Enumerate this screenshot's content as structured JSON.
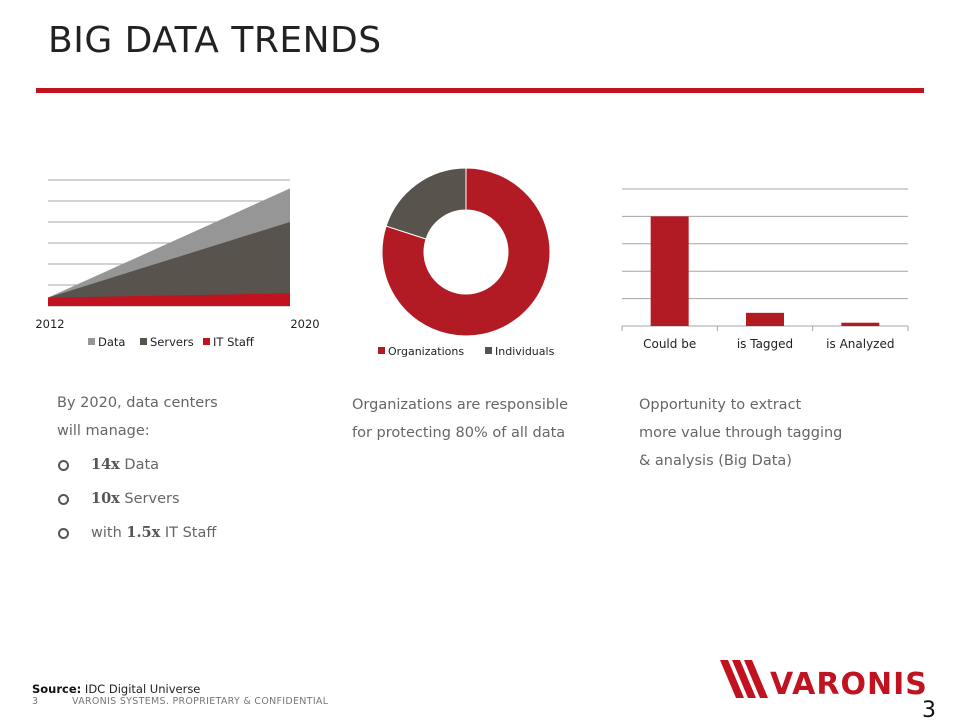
{
  "slide": {
    "title": "BIG DATA TRENDS",
    "page_number": "3",
    "footer_number": "3",
    "footer_text": "VARONIS SYSTEMS. PROPRIETARY & CONFIDENTIAL",
    "source_label": "Source:",
    "source_text": " IDC Digital Universe",
    "logo_text": "VARONIS"
  },
  "captions": {
    "left_line1": "By 2020, data centers",
    "left_line2": "will manage:",
    "bullets": [
      {
        "bold": "14x",
        "text": " Data"
      },
      {
        "pre": "",
        "bold": "10x",
        "text": " Servers"
      },
      {
        "pre": "with ",
        "bold": "1.5x",
        "text": " IT Staff"
      }
    ],
    "middle_line1": "Organizations are responsible",
    "middle_line2": "for protecting 80% of all data",
    "right_line1": "Opportunity to extract",
    "right_line2": "more value through tagging",
    "right_line3": "& analysis (Big Data)"
  },
  "colors": {
    "accent": "#c1121f",
    "bar_red": "#b31b24",
    "data_gray": "#969696",
    "servers_gray": "#58534d",
    "grid": "#a6a6a6"
  },
  "chart_data": [
    {
      "type": "area",
      "x": [
        "2012",
        "2020"
      ],
      "series": [
        {
          "name": "Data",
          "values": [
            1,
            14
          ]
        },
        {
          "name": "Servers",
          "values": [
            1,
            10
          ]
        },
        {
          "name": "IT Staff",
          "values": [
            1,
            1.5
          ]
        }
      ],
      "legend_position": "bottom",
      "grid": true
    },
    {
      "type": "pie",
      "variant": "donut",
      "categories": [
        "Organizations",
        "Individuals"
      ],
      "values": [
        80,
        20
      ],
      "legend_position": "bottom"
    },
    {
      "type": "bar",
      "categories": [
        "Could be",
        "is Tagged",
        "is Analyzed"
      ],
      "values": [
        100,
        12,
        3
      ],
      "grid": true
    }
  ]
}
